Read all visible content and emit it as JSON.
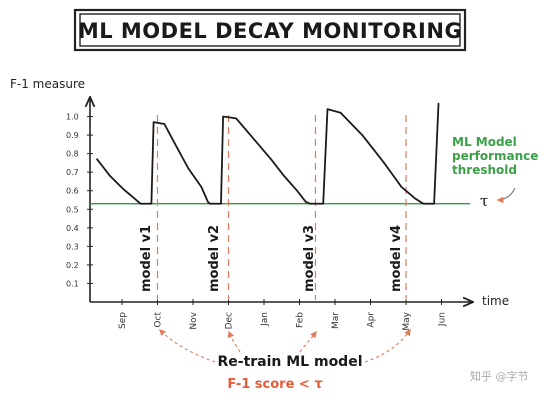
{
  "chart_data": {
    "type": "line",
    "title": "ML MODEL DECAY MONITORING",
    "ylabel": "F-1 measure",
    "xlabel": "time",
    "y_ticks": [
      "0.1",
      "0.2",
      "0.3",
      "0.4",
      "0.5",
      "0.6",
      "0.7",
      "0.8",
      "0.9",
      "1.0"
    ],
    "ylim": [
      0,
      1.1
    ],
    "x_ticks": [
      "Sep",
      "Oct",
      "Nov",
      "Dec",
      "Jan",
      "Feb",
      "Mar",
      "Apr",
      "May",
      "Jun"
    ],
    "threshold": {
      "value": 0.53,
      "label": "ML Model performance threshold",
      "symbol": "τ"
    },
    "segments": [
      {
        "name": "model v1",
        "points": [
          [
            0.0,
            0.77
          ],
          [
            0.3,
            0.68
          ],
          [
            0.6,
            0.61
          ],
          [
            0.85,
            0.56
          ],
          [
            1.0,
            0.53
          ]
        ]
      },
      {
        "name": "model v2",
        "points": [
          [
            1.25,
            0.53
          ],
          [
            1.3,
            0.97
          ],
          [
            1.55,
            0.96
          ],
          [
            1.8,
            0.85
          ],
          [
            2.1,
            0.72
          ],
          [
            2.4,
            0.62
          ],
          [
            2.55,
            0.54
          ],
          [
            2.6,
            0.53
          ]
        ]
      },
      {
        "name": "model v3",
        "points": [
          [
            2.85,
            0.53
          ],
          [
            2.9,
            1.0
          ],
          [
            3.2,
            0.99
          ],
          [
            3.6,
            0.88
          ],
          [
            4.0,
            0.77
          ],
          [
            4.3,
            0.68
          ],
          [
            4.6,
            0.6
          ],
          [
            4.8,
            0.54
          ],
          [
            4.9,
            0.53
          ]
        ]
      },
      {
        "name": "model v4",
        "points": [
          [
            5.2,
            0.53
          ],
          [
            5.3,
            1.04
          ],
          [
            5.6,
            1.02
          ],
          [
            6.1,
            0.9
          ],
          [
            6.6,
            0.75
          ],
          [
            7.0,
            0.62
          ],
          [
            7.3,
            0.56
          ],
          [
            7.5,
            0.53
          ]
        ]
      },
      {
        "name": "",
        "points": [
          [
            7.75,
            0.53
          ],
          [
            7.85,
            1.07
          ]
        ]
      }
    ],
    "retrain_points": [
      1.0,
      2.0,
      4.7,
      7.3
    ],
    "models": [
      "model v1",
      "model v2",
      "model v3",
      "model v4"
    ],
    "annotation": {
      "line1": "Re-train ML model",
      "line2": "F-1 score < τ"
    }
  },
  "watermark": "知乎 @字节"
}
